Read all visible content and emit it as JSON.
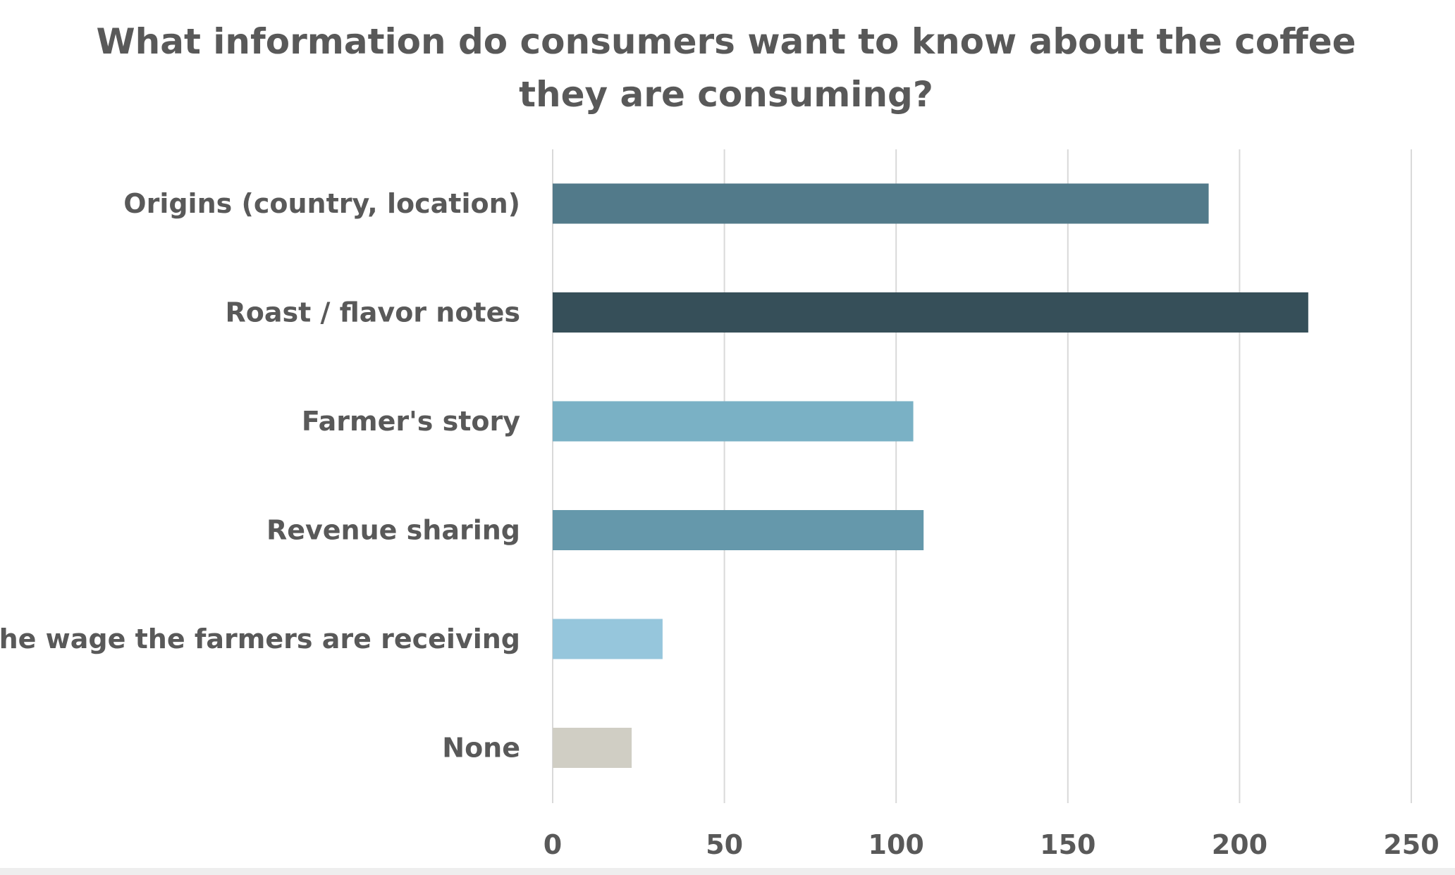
{
  "chart_data": {
    "type": "bar",
    "orientation": "horizontal",
    "title": [
      "What information do consumers want to know about the coffee",
      "they are consuming?"
    ],
    "categories": [
      "Origins (country, location)",
      "Roast / flavor notes",
      "Farmer's story",
      "Revenue sharing",
      "The wage the farmers are receiving",
      "None"
    ],
    "values": [
      191,
      220,
      105,
      108,
      32,
      23
    ],
    "colors": [
      "#527a8a",
      "#364f59",
      "#7ab1c5",
      "#6598ab",
      "#96c6dc",
      "#d0cec4"
    ],
    "xlim": [
      0,
      250
    ],
    "xticks": [
      "0",
      "50",
      "100",
      "150",
      "200",
      "250"
    ],
    "grid": true,
    "legend": "none"
  }
}
